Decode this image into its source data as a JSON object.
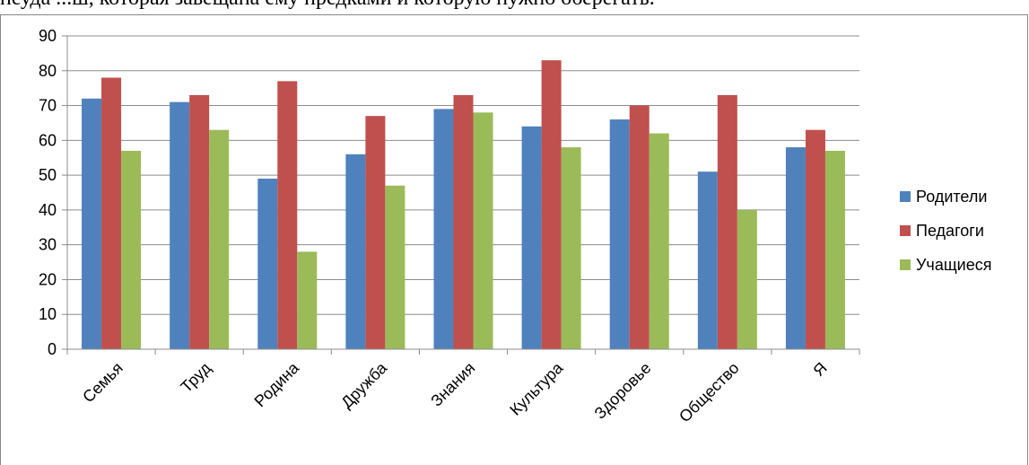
{
  "page": {
    "text_above": "неуда ...ш, которая завещана ему предками и которую нужно оберегать."
  },
  "chart_data": {
    "type": "bar",
    "categories": [
      "Семья",
      "Труд",
      "Родина",
      "Дружба",
      "Знания",
      "Культура",
      "Здоровье",
      "Общество",
      "Я"
    ],
    "series": [
      {
        "name": "Родители",
        "color": "#4F81BD",
        "values": [
          72,
          71,
          49,
          56,
          69,
          64,
          66,
          51,
          58
        ]
      },
      {
        "name": "Педагоги",
        "color": "#C0504D",
        "values": [
          78,
          73,
          77,
          67,
          73,
          83,
          70,
          73,
          63
        ]
      },
      {
        "name": "Учащиеся",
        "color": "#9BBB59",
        "values": [
          57,
          63,
          28,
          47,
          68,
          58,
          62,
          40,
          57
        ]
      }
    ],
    "yticks": [
      "0",
      "10",
      "20",
      "30",
      "40",
      "50",
      "60",
      "70",
      "80",
      "90"
    ],
    "ylim": [
      0,
      90
    ],
    "grid": true,
    "legend_position": "right"
  }
}
